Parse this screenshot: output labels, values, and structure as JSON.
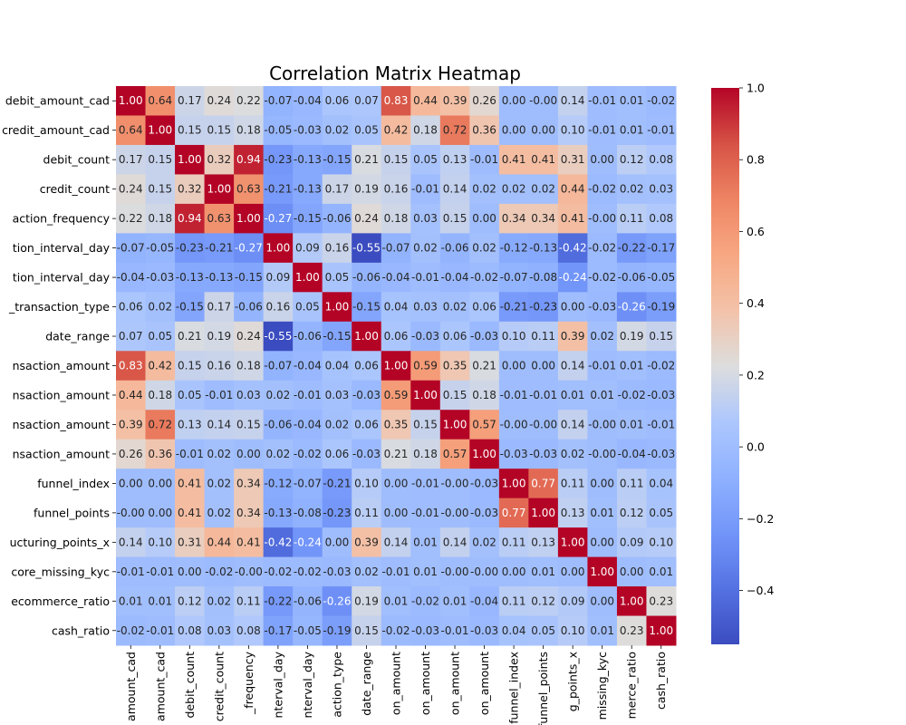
{
  "chart_data": {
    "type": "heatmap",
    "title": "Correlation Matrix Heatmap",
    "colormap": "coolwarm",
    "annotation_format": "0.00",
    "row_labels": [
      "debit_amount_cad",
      "credit_amount_cad",
      "debit_count",
      "credit_count",
      "action_frequency",
      "tion_interval_day",
      "tion_interval_day",
      "_transaction_type",
      "date_range",
      "nsaction_amount",
      "nsaction_amount",
      "nsaction_amount",
      "nsaction_amount",
      "funnel_index",
      "funnel_points",
      "ucturing_points_x",
      "core_missing_kyc",
      "ecommerce_ratio",
      "cash_ratio"
    ],
    "column_labels": [
      "amount_cad",
      "amount_cad",
      "debit_count",
      "credit_count",
      "_frequency",
      "nterval_day",
      "nterval_day",
      "action_type",
      "date_range",
      "on_amount",
      "on_amount",
      "on_amount",
      "on_amount",
      "funnel_index",
      "funnel_points",
      "g_points_x",
      "missing_kyc",
      "merce_ratio",
      "cash_ratio"
    ],
    "values": [
      [
        1.0,
        0.64,
        0.17,
        0.24,
        0.22,
        -0.07,
        -0.04,
        0.06,
        0.07,
        0.83,
        0.44,
        0.39,
        0.26,
        0.0,
        -0.0,
        0.14,
        -0.01,
        0.01,
        -0.02
      ],
      [
        0.64,
        1.0,
        0.15,
        0.15,
        0.18,
        -0.05,
        -0.03,
        0.02,
        0.05,
        0.42,
        0.18,
        0.72,
        0.36,
        0.0,
        0.0,
        0.1,
        -0.01,
        0.01,
        -0.01
      ],
      [
        0.17,
        0.15,
        1.0,
        0.32,
        0.94,
        -0.23,
        -0.13,
        -0.15,
        0.21,
        0.15,
        0.05,
        0.13,
        -0.01,
        0.41,
        0.41,
        0.31,
        0.0,
        0.12,
        0.08
      ],
      [
        0.24,
        0.15,
        0.32,
        1.0,
        0.63,
        -0.21,
        -0.13,
        0.17,
        0.19,
        0.16,
        -0.01,
        0.14,
        0.02,
        0.02,
        0.02,
        0.44,
        -0.02,
        0.02,
        0.03
      ],
      [
        0.22,
        0.18,
        0.94,
        0.63,
        1.0,
        -0.27,
        -0.15,
        -0.06,
        0.24,
        0.18,
        0.03,
        0.15,
        0.0,
        0.34,
        0.34,
        0.41,
        -0.0,
        0.11,
        0.08
      ],
      [
        -0.07,
        -0.05,
        -0.23,
        -0.21,
        -0.27,
        1.0,
        0.09,
        0.16,
        -0.55,
        -0.07,
        0.02,
        -0.06,
        0.02,
        -0.12,
        -0.13,
        -0.42,
        -0.02,
        -0.22,
        -0.17
      ],
      [
        -0.04,
        -0.03,
        -0.13,
        -0.13,
        -0.15,
        0.09,
        1.0,
        0.05,
        -0.06,
        -0.04,
        -0.01,
        -0.04,
        -0.02,
        -0.07,
        -0.08,
        -0.24,
        -0.02,
        -0.06,
        -0.05
      ],
      [
        0.06,
        0.02,
        -0.15,
        0.17,
        -0.06,
        0.16,
        0.05,
        1.0,
        -0.15,
        0.04,
        0.03,
        0.02,
        0.06,
        -0.21,
        -0.23,
        0.0,
        -0.03,
        -0.26,
        -0.19
      ],
      [
        0.07,
        0.05,
        0.21,
        0.19,
        0.24,
        -0.55,
        -0.06,
        -0.15,
        1.0,
        0.06,
        -0.03,
        0.06,
        -0.03,
        0.1,
        0.11,
        0.39,
        0.02,
        0.19,
        0.15
      ],
      [
        0.83,
        0.42,
        0.15,
        0.16,
        0.18,
        -0.07,
        -0.04,
        0.04,
        0.06,
        1.0,
        0.59,
        0.35,
        0.21,
        0.0,
        0.0,
        0.14,
        -0.01,
        0.01,
        -0.02
      ],
      [
        0.44,
        0.18,
        0.05,
        -0.01,
        0.03,
        0.02,
        -0.01,
        0.03,
        -0.03,
        0.59,
        1.0,
        0.15,
        0.18,
        -0.01,
        -0.01,
        0.01,
        0.01,
        -0.02,
        -0.03
      ],
      [
        0.39,
        0.72,
        0.13,
        0.14,
        0.15,
        -0.06,
        -0.04,
        0.02,
        0.06,
        0.35,
        0.15,
        1.0,
        0.57,
        -0.0,
        -0.0,
        0.14,
        -0.0,
        0.01,
        -0.01
      ],
      [
        0.26,
        0.36,
        -0.01,
        0.02,
        0.0,
        0.02,
        -0.02,
        0.06,
        -0.03,
        0.21,
        0.18,
        0.57,
        1.0,
        -0.03,
        -0.03,
        0.02,
        -0.0,
        -0.04,
        -0.03
      ],
      [
        0.0,
        0.0,
        0.41,
        0.02,
        0.34,
        -0.12,
        -0.07,
        -0.21,
        0.1,
        0.0,
        -0.01,
        -0.0,
        -0.03,
        1.0,
        0.77,
        0.11,
        0.0,
        0.11,
        0.04
      ],
      [
        -0.0,
        0.0,
        0.41,
        0.02,
        0.34,
        -0.13,
        -0.08,
        -0.23,
        0.11,
        0.0,
        -0.01,
        -0.0,
        -0.03,
        0.77,
        1.0,
        0.13,
        0.01,
        0.12,
        0.05
      ],
      [
        0.14,
        0.1,
        0.31,
        0.44,
        0.41,
        -0.42,
        -0.24,
        0.0,
        0.39,
        0.14,
        0.01,
        0.14,
        0.02,
        0.11,
        0.13,
        1.0,
        0.0,
        0.09,
        0.1
      ],
      [
        -0.01,
        -0.01,
        0.0,
        -0.02,
        -0.0,
        -0.02,
        -0.02,
        -0.03,
        0.02,
        -0.01,
        0.01,
        -0.0,
        -0.0,
        0.0,
        0.01,
        0.0,
        1.0,
        0.0,
        0.01
      ],
      [
        0.01,
        0.01,
        0.12,
        0.02,
        0.11,
        -0.22,
        -0.06,
        -0.26,
        0.19,
        0.01,
        -0.02,
        0.01,
        -0.04,
        0.11,
        0.12,
        0.09,
        0.0,
        1.0,
        0.23
      ],
      [
        -0.02,
        -0.01,
        0.08,
        0.03,
        0.08,
        -0.17,
        -0.05,
        -0.19,
        0.15,
        -0.02,
        -0.03,
        -0.01,
        -0.03,
        0.04,
        0.05,
        0.1,
        0.01,
        0.23,
        1.0
      ]
    ],
    "color_range": [
      -0.55,
      1.0
    ],
    "colorbar_ticks": [
      1.0,
      0.8,
      0.6,
      0.4,
      0.2,
      0.0,
      -0.2,
      -0.4
    ],
    "colorbar_tick_labels": [
      "1.0",
      "0.8",
      "0.6",
      "0.4",
      "0.2",
      "0.0",
      "−0.2",
      "−0.4"
    ],
    "grid": false,
    "legend": "colorbar-right"
  }
}
